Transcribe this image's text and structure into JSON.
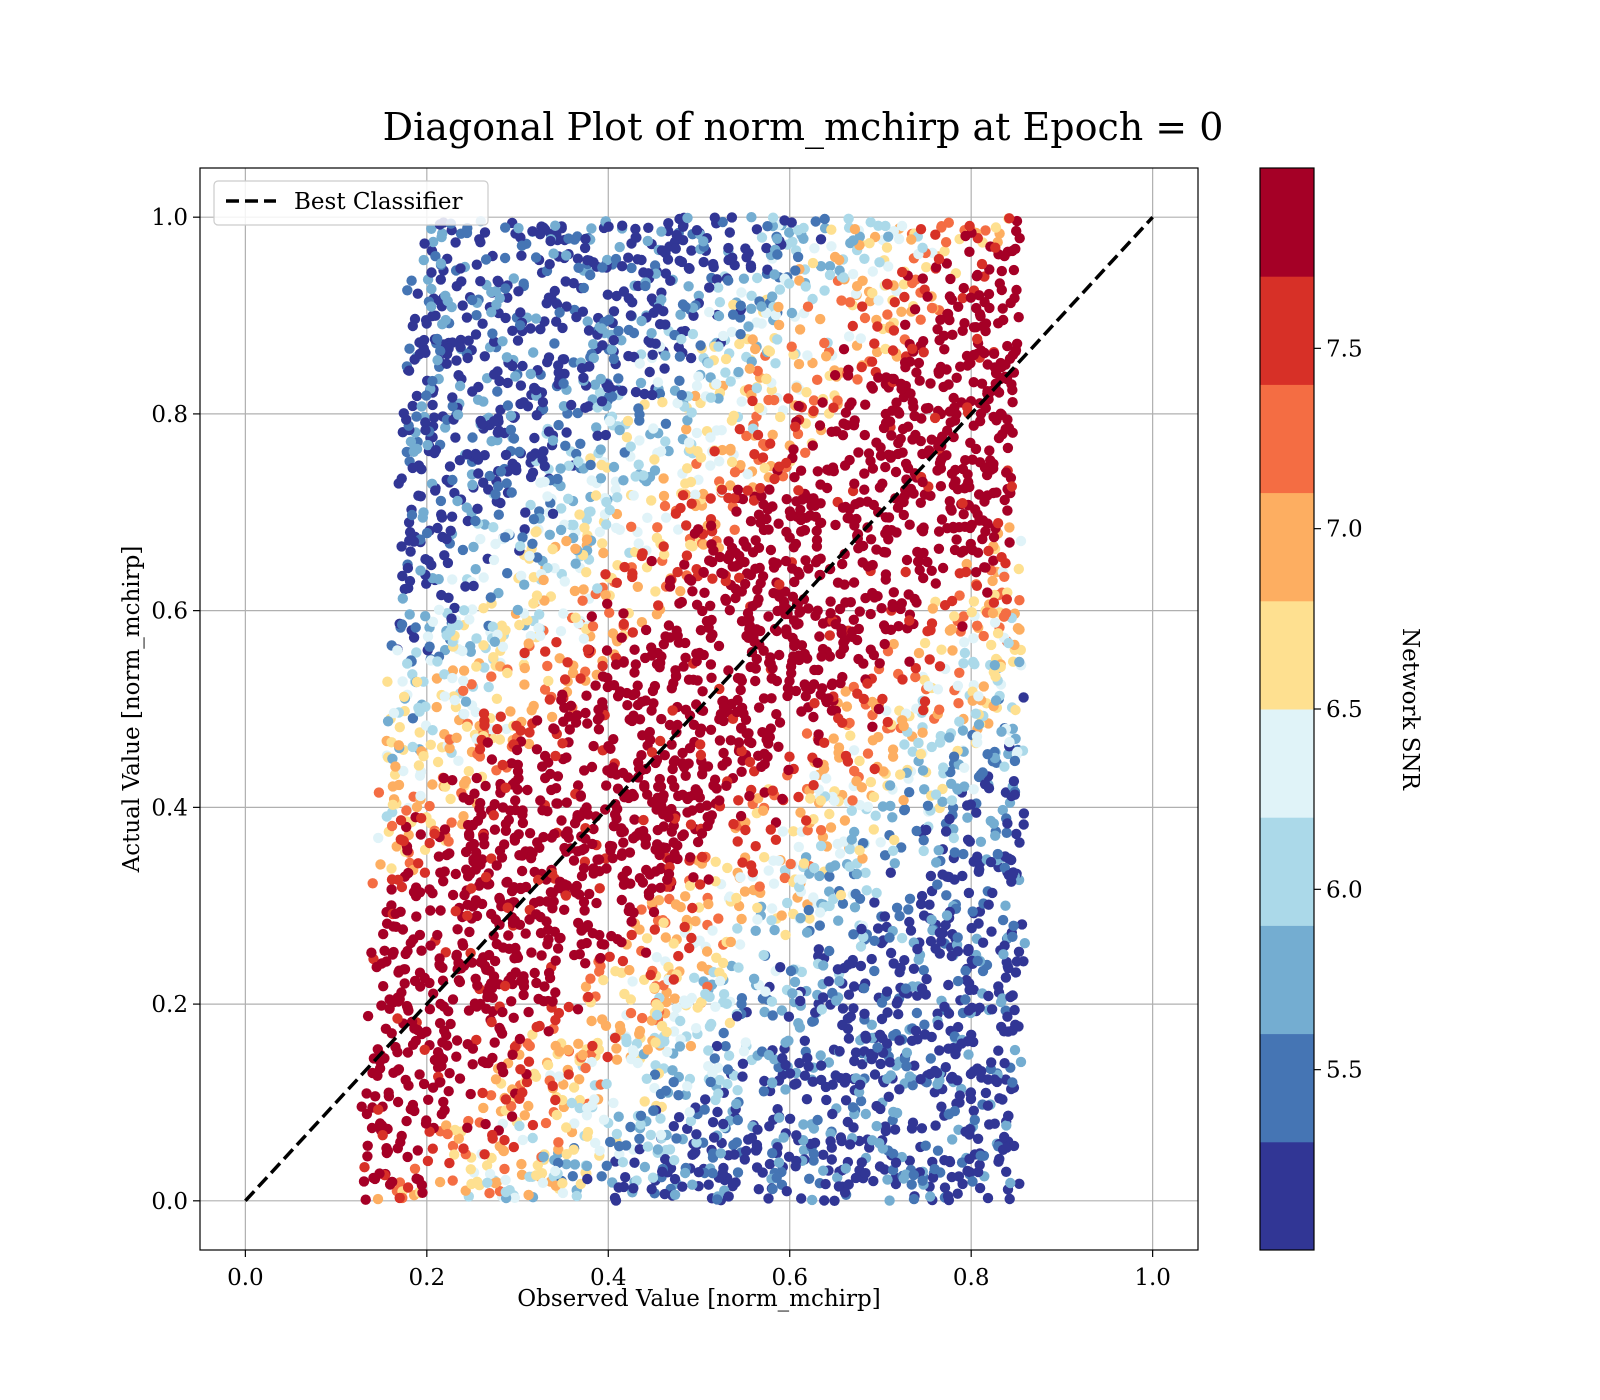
{
  "chart_data": {
    "type": "scatter",
    "title": "Diagonal Plot of norm_mchirp at Epoch = 0",
    "xlabel": "Observed Value [norm_mchirp]",
    "ylabel": "Actual Value [norm_mchirp]",
    "xlim": [
      -0.05,
      1.05
    ],
    "ylim": [
      -0.05,
      1.05
    ],
    "xticks": [
      0.0,
      0.2,
      0.4,
      0.6,
      0.8,
      1.0
    ],
    "yticks": [
      0.0,
      0.2,
      0.4,
      0.6,
      0.8,
      1.0
    ],
    "xtick_labels": [
      "0.0",
      "0.2",
      "0.4",
      "0.6",
      "0.8",
      "1.0"
    ],
    "ytick_labels": [
      "0.0",
      "0.2",
      "0.4",
      "0.6",
      "0.8",
      "1.0"
    ],
    "grid": true,
    "legend": {
      "position": "top-left",
      "entries": [
        {
          "label": "Best Classifier",
          "style": "dashed",
          "color": "#000000"
        }
      ]
    },
    "reference_line": {
      "name": "Best Classifier",
      "x": [
        0.0,
        1.0
      ],
      "y": [
        0.0,
        1.0
      ],
      "style": "dashed",
      "color": "#000000"
    },
    "scatter_region": {
      "description_points": "dense point cloud; observed range 0.12-0.86, actual range 0.0-1.0",
      "observed_min": 0.12,
      "observed_max": 0.86,
      "actual_min": 0.0,
      "actual_max": 1.0,
      "high_snr_band_halfwidth": 0.14
    },
    "colorbar": {
      "label": "Network SNR",
      "range": [
        5.0,
        8.0
      ],
      "ticks": [
        5.5,
        6.0,
        6.5,
        7.0,
        7.5
      ],
      "tick_labels": [
        "5.5",
        "6.0",
        "6.5",
        "7.0",
        "7.5"
      ],
      "colors": [
        "#313695",
        "#4575b4",
        "#74add1",
        "#abd9e9",
        "#e0f3f8",
        "#fee090",
        "#fdae61",
        "#f46d43",
        "#d73027",
        "#a50026"
      ]
    }
  }
}
